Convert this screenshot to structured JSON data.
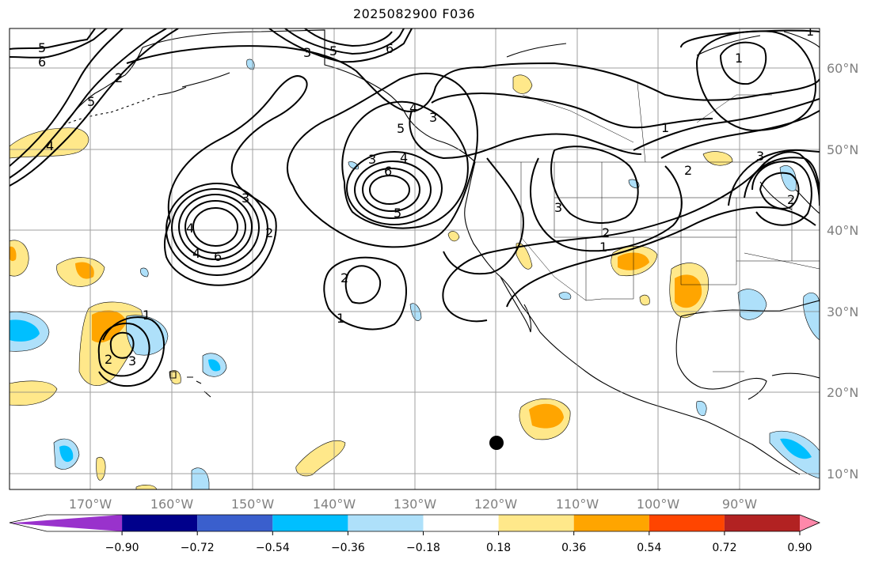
{
  "title": "2025082900 F036",
  "lat_labels": [
    "60°N",
    "50°N",
    "40°N",
    "30°N",
    "20°N",
    "10°N"
  ],
  "lon_labels": [
    "170°W",
    "160°W",
    "150°W",
    "140°W",
    "130°W",
    "120°W",
    "110°W",
    "100°W",
    "90°W"
  ],
  "colorbar": {
    "ticks": [
      "−0.90",
      "−0.72",
      "−0.54",
      "−0.36",
      "−0.18",
      "0.18",
      "0.36",
      "0.54",
      "0.72",
      "0.90"
    ],
    "colors": [
      "#9932cc",
      "#00008b",
      "#3a5fcd",
      "#00bfff",
      "#aee0fa",
      "#ffffff",
      "#ffe88a",
      "#ffa500",
      "#ff4500",
      "#b22222",
      "#ff88aa"
    ]
  },
  "contour_labels": {
    "c5": "5",
    "c6": "6",
    "c2a": "2",
    "c5b": "5",
    "c4a": "4",
    "c3a": "3",
    "c6a": "6",
    "c5c": "5",
    "c6b": "6",
    "c4b": "4",
    "c3b": "3",
    "c4c": "4",
    "c5d": "5",
    "c6c": "6",
    "c3c": "3",
    "c4d": "4",
    "c5e": "5",
    "c4e": "4",
    "c3d": "3",
    "c2b": "2",
    "c2c": "2",
    "c1a": "1",
    "c1b": "1",
    "c2d": "2",
    "c3e": "3",
    "c3f": "3",
    "c2e": "2",
    "c1c": "1",
    "c1d": "1",
    "c2f": "2",
    "c1e": "1",
    "c3g": "3",
    "c2g": "2",
    "c1f": "1"
  }
}
